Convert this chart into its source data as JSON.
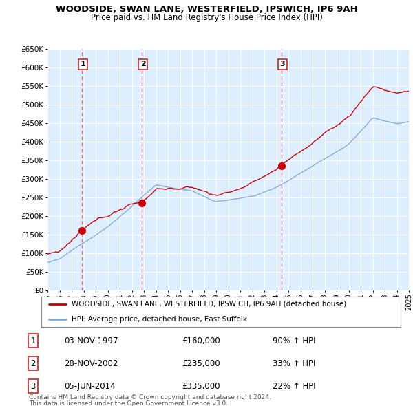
{
  "title": "WOODSIDE, SWAN LANE, WESTERFIELD, IPSWICH, IP6 9AH",
  "subtitle": "Price paid vs. HM Land Registry's House Price Index (HPI)",
  "legend_line1": "WOODSIDE, SWAN LANE, WESTERFIELD, IPSWICH, IP6 9AH (detached house)",
  "legend_line2": "HPI: Average price, detached house, East Suffolk",
  "sale_labels": [
    "1",
    "2",
    "3"
  ],
  "sale_prices": [
    160000,
    235000,
    335000
  ],
  "sale_years": [
    1997.833,
    2002.833,
    2014.417
  ],
  "table_rows": [
    [
      "1",
      "03-NOV-1997",
      "£160,000",
      "90% ↑ HPI"
    ],
    [
      "2",
      "28-NOV-2002",
      "£235,000",
      "33% ↑ HPI"
    ],
    [
      "3",
      "05-JUN-2014",
      "£335,000",
      "22% ↑ HPI"
    ]
  ],
  "footer_line1": "Contains HM Land Registry data © Crown copyright and database right 2024.",
  "footer_line2": "This data is licensed under the Open Government Licence v3.0.",
  "red_color": "#cc0000",
  "blue_color": "#7ba7d4",
  "vline_color": "#ff6666",
  "background_color": "#ddeeff",
  "grid_color": "#ffffff",
  "ylim": [
    0,
    650000
  ],
  "yticks": [
    0,
    50000,
    100000,
    150000,
    200000,
    250000,
    300000,
    350000,
    400000,
    450000,
    500000,
    550000,
    600000,
    650000
  ],
  "x_start_year": 1995,
  "x_end_year": 2025
}
